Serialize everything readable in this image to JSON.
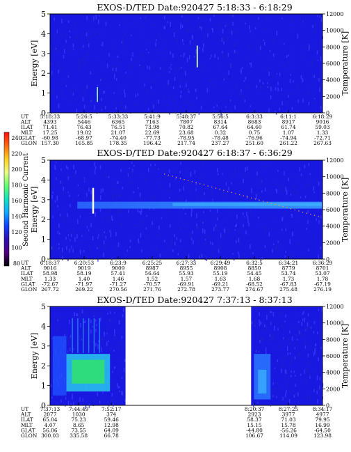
{
  "colors": {
    "background": "#1818e0",
    "noise": "#3a3aff",
    "green": "#30e070",
    "cyan": "#28c8f0",
    "lightgreen": "#a0ffa0",
    "white": "#ffffff",
    "orange": "#ff9a30"
  },
  "colorbar": {
    "label": "Second Harmonic Current",
    "ticks": [
      "240",
      "220",
      "200",
      "180",
      "160",
      "140",
      "120",
      "100",
      "80"
    ],
    "stops": [
      "#ff1010",
      "#ff6a10",
      "#ffd020",
      "#e8ff80",
      "#60ff70",
      "#10e0c0",
      "#10a8ff",
      "#1040ff",
      "#3010b0",
      "#500080",
      "#000000"
    ]
  },
  "chart_data": [
    {
      "type": "heatmap",
      "title": "EXOS-D/TED   Date:920427  5:18:33 - 6:18:29",
      "ylabel": "Energy [eV]",
      "y2label": "Temperature [K]",
      "ylim": [
        0,
        5
      ],
      "yticks": [
        "0",
        "1",
        "2",
        "3",
        "4",
        "5"
      ],
      "y2lim": [
        0,
        12000
      ],
      "y2ticks": [
        "0",
        "2000",
        "4000",
        "6000",
        "8000",
        "10000",
        "12000"
      ],
      "row_labels": [
        "UT",
        "ALT",
        "ILAT",
        "MLT",
        "GLAT",
        "GLON"
      ],
      "columns": [
        [
          "5:18:33",
          "4393",
          "71.41",
          "17.25",
          "-60.98",
          "157.30"
        ],
        [
          "5:26:5",
          "5446",
          "76.43",
          "19.02",
          "-68.97",
          "165.85"
        ],
        [
          "5:33:33",
          "6365",
          "76.51",
          "21.07",
          "-74.40",
          "178.35"
        ],
        [
          "5:41:9",
          "7163",
          "73.98",
          "22.69",
          "-77.73",
          "196.42"
        ],
        [
          "5:48:37",
          "7807",
          "70.82",
          "23.68",
          "-78.95",
          "217.74"
        ],
        [
          "5:56:5",
          "8314",
          "67.64",
          "0.32",
          "-78.48",
          "237.27"
        ],
        [
          "6:3:33",
          "8683",
          "64.60",
          "0.75",
          "-76.96",
          "251.60"
        ],
        [
          "6:11:1",
          "8917",
          "61.74",
          "1.07",
          "-74.94",
          "261.22"
        ],
        [
          "6:18:29",
          "9016",
          "59.03",
          "1.33",
          "-72.71",
          "267.63"
        ]
      ],
      "gaps": []
    },
    {
      "type": "heatmap",
      "title": "EXOS-D/TED   Date:920427  6:18:37 - 6:36:29",
      "ylabel": "Energy [eV]",
      "y2label": "Temperature [K]",
      "ylim": [
        0,
        5
      ],
      "yticks": [
        "0",
        "1",
        "2",
        "3",
        "4",
        "5"
      ],
      "y2lim": [
        0,
        12000
      ],
      "y2ticks": [
        "0",
        "2000",
        "4000",
        "6000",
        "8000",
        "10000",
        "12000"
      ],
      "row_labels": [
        "UT",
        "ALT",
        "ILAT",
        "MLT",
        "GLAT",
        "GLON"
      ],
      "columns": [
        [
          "6:18:37",
          "9016",
          "58.98",
          "1.33",
          "-72.67",
          "267.72"
        ],
        [
          "6:20:53",
          "9019",
          "58.19",
          "1.40",
          "-71.97",
          "269.22"
        ],
        [
          "6:23:9",
          "9009",
          "57.41",
          "1.46",
          "-71.27",
          "270.56"
        ],
        [
          "6:25:25",
          "8987",
          "56.64",
          "1.52",
          "-70.57",
          "271.76"
        ],
        [
          "6:27:33",
          "8955",
          "55.93",
          "1.57",
          "-69.91",
          "272.78"
        ],
        [
          "6:29:49",
          "8908",
          "55.19",
          "1.63",
          "-69.21",
          "273.77"
        ],
        [
          "6:32:5",
          "8850",
          "54.45",
          "1.68",
          "-68.52",
          "274.67"
        ],
        [
          "6:34:21",
          "8779",
          "53.74",
          "1.73",
          "-67.83",
          "275.48"
        ],
        [
          "6:36:29",
          "8701",
          "53.07",
          "1.78",
          "-67.19",
          "276.19"
        ]
      ],
      "gaps": []
    },
    {
      "type": "heatmap",
      "title": "EXOS-D/TED   Date:920427  7:37:13 - 8:37:13",
      "ylabel": "Energy [eV]",
      "y2label": "Temperature [K]",
      "ylim": [
        0,
        5
      ],
      "yticks": [
        "0",
        "1",
        "2",
        "3",
        "4",
        "5"
      ],
      "y2lim": [
        0,
        12000
      ],
      "y2ticks": [
        "0",
        "2000",
        "4000",
        "6000",
        "8000",
        "10000",
        "12000"
      ],
      "row_labels": [
        "UT",
        "ALT",
        "ILAT",
        "MLT",
        "GLAT",
        "GLON"
      ],
      "columns": [
        [
          "7:37:13",
          "2077",
          "65.04",
          "4.07",
          "56.06",
          "300.03"
        ],
        [
          "7:44:49",
          "1030",
          "75.23",
          "8.65",
          "73.55",
          "335.58"
        ],
        [
          "7:52:17",
          "374",
          "59.46",
          "12.98",
          "64.09",
          "66.78"
        ],
        [
          "8:20:37",
          "2923",
          "58.37",
          "15.15",
          "-44.80",
          "106.67"
        ],
        [
          "8:27:25",
          "3977",
          "71.03",
          "15.78",
          "-56.26",
          "114.09"
        ],
        [
          "8:34:17",
          "4977",
          "79.95",
          "16.99",
          "-64.50",
          "123.98"
        ]
      ],
      "gaps": [
        [
          0.277,
          0.738
        ]
      ]
    }
  ]
}
